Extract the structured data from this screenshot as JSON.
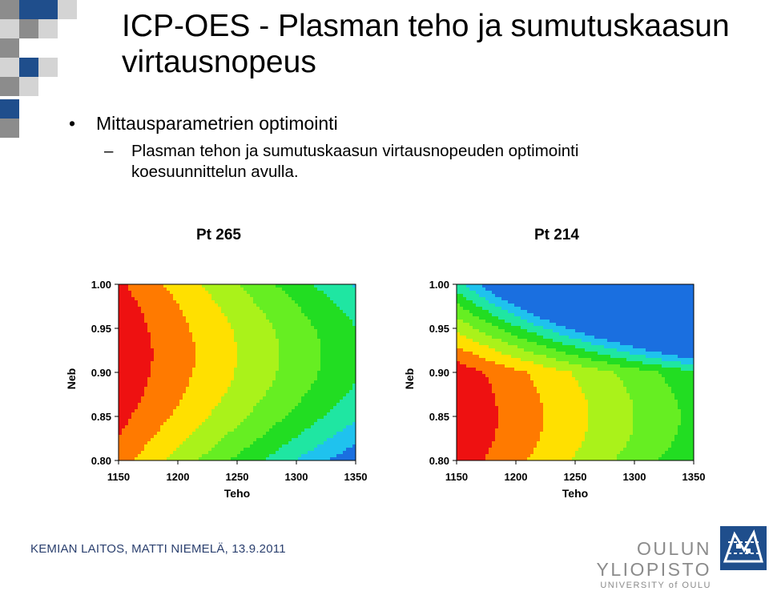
{
  "slide": {
    "title": "ICP-OES - Plasman teho ja sumutuskaasun virtausnopeus",
    "bullet1": "Mittausparametrien optimointi",
    "bullet1_marker": "•",
    "bullet2": "Plasman tehon ja sumutuskaasun virtausnopeuden optimointi koesuunnittelun avulla.",
    "bullet2_marker": "–",
    "footer": "KEMIAN LAITOS, MATTI NIEMELÄ, 13.9.2011",
    "university_name": "OULUN YLIOPISTO",
    "university_sub": "UNIVERSITY of OULU",
    "colors": {
      "brand_blue": "#1f4e8c",
      "deco_gray": "#8c8c8c",
      "deco_light": "#d4d4d4",
      "footer_text": "#2a3f6e"
    }
  },
  "chart_data": [
    {
      "type": "contour",
      "title": "Pt 265",
      "xlabel": "Teho",
      "ylabel": "Neb",
      "x_ticks": [
        "1150",
        "1200",
        "1250",
        "1300",
        "1350"
      ],
      "y_ticks": [
        "0.80",
        "0.85",
        "0.90",
        "0.95",
        "1.00"
      ],
      "xlim": [
        1150,
        1350
      ],
      "ylim": [
        0.8,
        1.0
      ],
      "levels": [
        {
          "color": "#1a6fe0",
          "value": 1
        },
        {
          "color": "#1fc2ee",
          "value": 2
        },
        {
          "color": "#1fe6a2",
          "value": 3
        },
        {
          "color": "#22dd22",
          "value": 4
        },
        {
          "color": "#66ee22",
          "value": 5
        },
        {
          "color": "#aaf21a",
          "value": 6
        },
        {
          "color": "#ffe000",
          "value": 7
        },
        {
          "color": "#ff7a00",
          "value": 8
        },
        {
          "color": "#ee1111",
          "value": 9
        }
      ],
      "maximum": {
        "x": 1150,
        "y": 0.92
      },
      "note": "Response maximum near low power and Neb 0.92; decreases toward high power and low Neb."
    },
    {
      "type": "contour",
      "title": "Pt 214",
      "xlabel": "Teho",
      "ylabel": "Neb",
      "x_ticks": [
        "1150",
        "1200",
        "1250",
        "1300",
        "1350"
      ],
      "y_ticks": [
        "0.80",
        "0.85",
        "0.90",
        "0.95",
        "1.00"
      ],
      "xlim": [
        1150,
        1350
      ],
      "ylim": [
        0.8,
        1.0
      ],
      "levels": [
        {
          "color": "#1a6fe0",
          "value": 1
        },
        {
          "color": "#1fc2ee",
          "value": 2
        },
        {
          "color": "#1fe6a2",
          "value": 3
        },
        {
          "color": "#22dd22",
          "value": 4
        },
        {
          "color": "#66ee22",
          "value": 5
        },
        {
          "color": "#aaf21a",
          "value": 6
        },
        {
          "color": "#ffe000",
          "value": 7
        },
        {
          "color": "#ff7a00",
          "value": 8
        },
        {
          "color": "#ee1111",
          "value": 9
        }
      ],
      "maximum": {
        "x": 1150,
        "y": 0.85
      },
      "note": "Response maximum near low power and Neb 0.85; decreases toward high power and high Neb."
    }
  ]
}
